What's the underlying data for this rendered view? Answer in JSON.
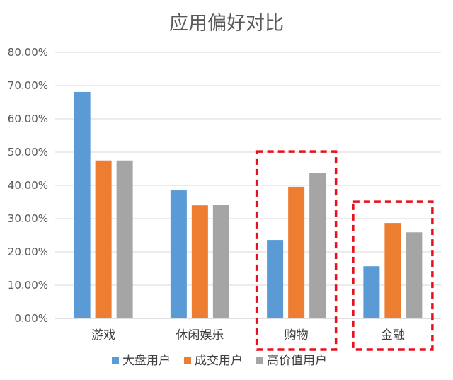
{
  "chart_data": {
    "type": "bar",
    "title": "应用偏好对比",
    "categories": [
      "游戏",
      "休闲娱乐",
      "购物",
      "金融"
    ],
    "series": [
      {
        "name": "大盘用户",
        "color": "#5B9BD5",
        "values": [
          68.1,
          38.5,
          23.6,
          15.7
        ]
      },
      {
        "name": "成交用户",
        "color": "#ED7D31",
        "values": [
          47.5,
          34.0,
          39.6,
          28.7
        ]
      },
      {
        "name": "高价值用户",
        "color": "#A5A5A5",
        "values": [
          47.5,
          34.2,
          43.8,
          25.9
        ]
      }
    ],
    "ylim": [
      0,
      80
    ],
    "yticks": [
      "0.00%",
      "10.00%",
      "20.00%",
      "30.00%",
      "40.00%",
      "50.00%",
      "60.00%",
      "70.00%",
      "80.00%"
    ],
    "grid": true,
    "legend_position": "bottom",
    "highlight_color": "#E8101E",
    "highlighted_categories": [
      "购物",
      "金融"
    ]
  }
}
